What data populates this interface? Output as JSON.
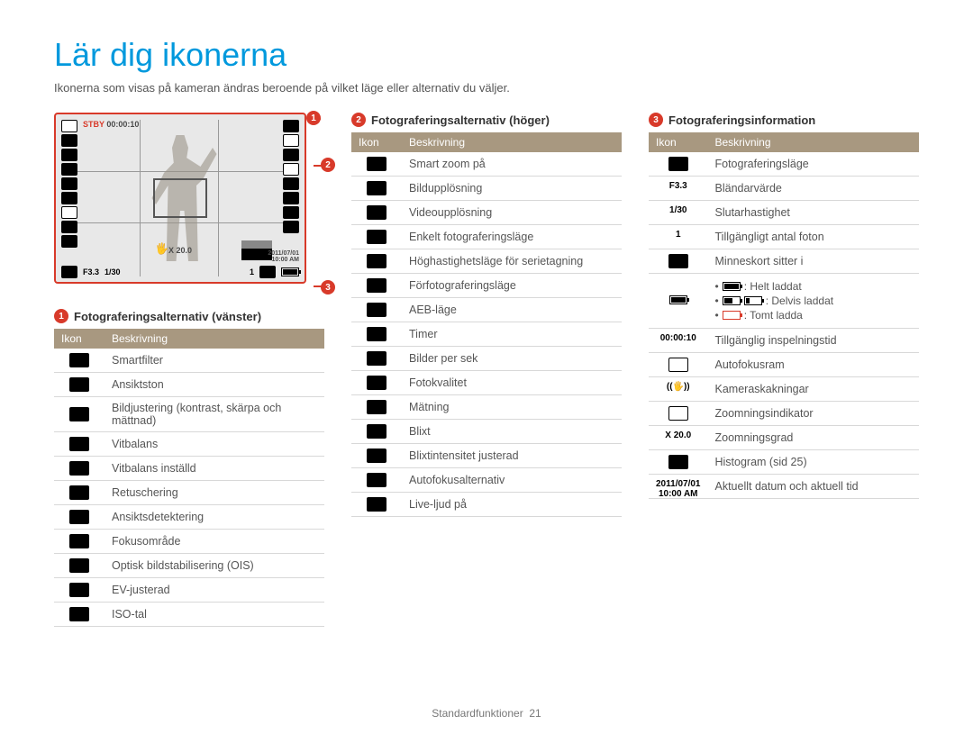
{
  "title": "Lär dig ikonerna",
  "intro": "Ikonerna som visas på kameran ändras beroende på vilket läge eller alternativ du väljer.",
  "colors": {
    "accent": "#0099dd",
    "callout": "#d83a2a",
    "table_header_bg": "#a89880"
  },
  "camera": {
    "stby": "STBY",
    "stby_time": "00:00:10",
    "zoom_label": "X 20.0",
    "bottom": {
      "f": "F3.3",
      "shutter": "1/30",
      "count": "1"
    },
    "date": "2011/07/01",
    "time": "10:00 AM"
  },
  "table_headers": {
    "icon": "Ikon",
    "desc": "Beskrivning"
  },
  "sections": {
    "s1": {
      "num": "1",
      "title": "Fotograferingsalternativ (vänster)",
      "rows": [
        {
          "desc": "Smartfilter"
        },
        {
          "desc": "Ansiktston"
        },
        {
          "desc": "Bildjustering (kontrast, skärpa och mättnad)"
        },
        {
          "desc": "Vitbalans"
        },
        {
          "desc": "Vitbalans inställd"
        },
        {
          "desc": "Retuschering"
        },
        {
          "desc": "Ansiktsdetektering"
        },
        {
          "desc": "Fokusområde"
        },
        {
          "desc": "Optisk bildstabilisering (OIS)"
        },
        {
          "desc": "EV-justerad"
        },
        {
          "desc": "ISO-tal"
        }
      ]
    },
    "s2": {
      "num": "2",
      "title": "Fotograferingsalternativ (höger)",
      "rows": [
        {
          "desc": "Smart zoom på"
        },
        {
          "desc": "Bildupplösning"
        },
        {
          "desc": "Videoupplösning"
        },
        {
          "desc": "Enkelt fotograferingsläge"
        },
        {
          "desc": "Höghastighetsläge för serietagning"
        },
        {
          "desc": "Förfotograferingsläge"
        },
        {
          "desc": "AEB-läge"
        },
        {
          "desc": "Timer"
        },
        {
          "desc": "Bilder per sek"
        },
        {
          "desc": "Fotokvalitet"
        },
        {
          "desc": "Mätning"
        },
        {
          "desc": "Blixt"
        },
        {
          "desc": "Blixtintensitet justerad"
        },
        {
          "desc": "Autofokusalternativ"
        },
        {
          "desc": "Live-ljud på"
        }
      ]
    },
    "s3": {
      "num": "3",
      "title": "Fotograferingsinformation",
      "rows": [
        {
          "icon_text": "",
          "desc": "Fotograferingsläge"
        },
        {
          "icon_text": "F3.3",
          "desc": "Bländarvärde"
        },
        {
          "icon_text": "1/30",
          "desc": "Slutarhastighet"
        },
        {
          "icon_text": "1",
          "desc": "Tillgängligt antal foton"
        },
        {
          "icon_text": "",
          "desc": "Minneskort sitter i"
        },
        {
          "battery": true,
          "full": ": Helt laddat",
          "partial": ": Delvis laddat",
          "empty": ": Tomt ladda"
        },
        {
          "icon_text": "00:00:10",
          "desc": "Tillgänglig inspelningstid"
        },
        {
          "icon_text": "",
          "desc": "Autofokusram",
          "outline": true
        },
        {
          "icon_text": "((🖐))",
          "desc": "Kameraskakningar"
        },
        {
          "icon_text": "",
          "desc": "Zoomningsindikator",
          "outline": true
        },
        {
          "icon_text": "X 20.0",
          "desc": "Zoomningsgrad"
        },
        {
          "icon_text": "",
          "desc": "Histogram (sid 25)"
        },
        {
          "icon_text": "2011/07/01\n10:00 AM",
          "desc": "Aktuellt datum och aktuell tid"
        }
      ]
    }
  },
  "footer": {
    "label": "Standardfunktioner",
    "page": "21"
  }
}
